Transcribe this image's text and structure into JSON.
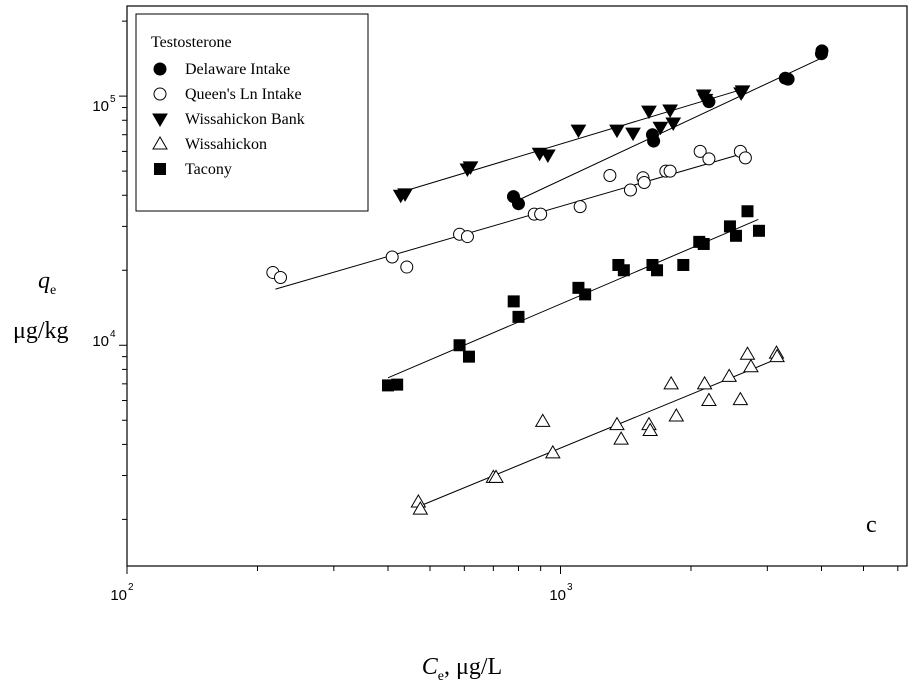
{
  "chart_data": {
    "type": "scatter",
    "xscale": "log",
    "yscale": "log",
    "xlim": [
      100,
      6300
    ],
    "ylim": [
      1300,
      230000
    ],
    "x_ticks": [
      {
        "value": 100,
        "base": "10",
        "exp": "2"
      },
      {
        "value": 1000,
        "base": "10",
        "exp": "3"
      }
    ],
    "y_ticks": [
      {
        "value": 10000,
        "base": "10",
        "exp": "4"
      },
      {
        "value": 100000,
        "base": "10",
        "exp": "5"
      }
    ],
    "xlabel": {
      "main": "C",
      "sub": "e",
      "unit": ", μg/L"
    },
    "ylabel": {
      "main": "q",
      "sub": "e",
      "unit": "μg/kg"
    },
    "panel_label": "c",
    "legend_title": "Testosterone",
    "legend_position": "top-left",
    "grid": false,
    "series": [
      {
        "name": "Delaware Intake",
        "marker": "circle-filled",
        "points": [
          [
            779,
            39500
          ],
          [
            800,
            37000
          ],
          [
            1630,
            70000
          ],
          [
            1640,
            66000
          ],
          [
            2200,
            95000
          ],
          [
            3300,
            118000
          ],
          [
            3350,
            117000
          ],
          [
            4000,
            148000
          ],
          [
            4010,
            152000
          ]
        ],
        "fit": [
          [
            780,
            37500
          ],
          [
            4030,
            143000
          ]
        ]
      },
      {
        "name": "Queen's Ln Intake",
        "marker": "circle-open",
        "points": [
          [
            217,
            19600
          ],
          [
            226,
            18700
          ],
          [
            409,
            22600
          ],
          [
            442,
            20600
          ],
          [
            585,
            27900
          ],
          [
            610,
            27300
          ],
          [
            870,
            33600
          ],
          [
            900,
            33600
          ],
          [
            1110,
            36000
          ],
          [
            1300,
            48000
          ],
          [
            1450,
            42000
          ],
          [
            1550,
            47000
          ],
          [
            1560,
            45000
          ],
          [
            1750,
            50000
          ],
          [
            1790,
            50000
          ],
          [
            2100,
            60000
          ],
          [
            2200,
            56000
          ],
          [
            2600,
            60000
          ],
          [
            2670,
            56500
          ]
        ],
        "fit": [
          [
            220,
            16800
          ],
          [
            2650,
            59000
          ]
        ]
      },
      {
        "name": "Wissahickon Bank",
        "marker": "triangle-down-filled",
        "points": [
          [
            428,
            40000
          ],
          [
            438,
            40500
          ],
          [
            610,
            51000
          ],
          [
            620,
            52000
          ],
          [
            895,
            59000
          ],
          [
            935,
            58000
          ],
          [
            1100,
            73000
          ],
          [
            1350,
            73000
          ],
          [
            1470,
            71000
          ],
          [
            1600,
            87000
          ],
          [
            1700,
            75000
          ],
          [
            1790,
            88000
          ],
          [
            1820,
            78000
          ],
          [
            2140,
            101000
          ],
          [
            2160,
            97000
          ],
          [
            2610,
            103000
          ],
          [
            2630,
            105000
          ]
        ],
        "fit": [
          [
            425,
            41000
          ],
          [
            2650,
            107000
          ]
        ]
      },
      {
        "name": "Wissahickon",
        "marker": "triangle-up-open",
        "points": [
          [
            470,
            2350
          ],
          [
            475,
            2200
          ],
          [
            700,
            2950
          ],
          [
            710,
            2950
          ],
          [
            910,
            4950
          ],
          [
            960,
            3700
          ],
          [
            1350,
            4800
          ],
          [
            1380,
            4200
          ],
          [
            1600,
            4800
          ],
          [
            1610,
            4550
          ],
          [
            1800,
            7000
          ],
          [
            1850,
            5200
          ],
          [
            2150,
            7000
          ],
          [
            2200,
            6000
          ],
          [
            2450,
            7500
          ],
          [
            2600,
            6050
          ],
          [
            2700,
            9200
          ],
          [
            2750,
            8200
          ],
          [
            3150,
            9300
          ],
          [
            3160,
            9000
          ]
        ],
        "fit": [
          [
            470,
            2250
          ],
          [
            3150,
            8800
          ]
        ]
      },
      {
        "name": "Tacony",
        "marker": "square-filled",
        "points": [
          [
            400,
            6900
          ],
          [
            420,
            6950
          ],
          [
            585,
            10000
          ],
          [
            615,
            9000
          ],
          [
            780,
            15000
          ],
          [
            800,
            13000
          ],
          [
            1100,
            17000
          ],
          [
            1140,
            16000
          ],
          [
            1360,
            21000
          ],
          [
            1400,
            20000
          ],
          [
            1630,
            21000
          ],
          [
            1670,
            20000
          ],
          [
            1920,
            21000
          ],
          [
            2090,
            26000
          ],
          [
            2140,
            25500
          ],
          [
            2460,
            30000
          ],
          [
            2540,
            27500
          ],
          [
            2700,
            34500
          ],
          [
            2870,
            28800
          ]
        ],
        "fit": [
          [
            400,
            7400
          ],
          [
            2860,
            32000
          ]
        ]
      }
    ]
  }
}
